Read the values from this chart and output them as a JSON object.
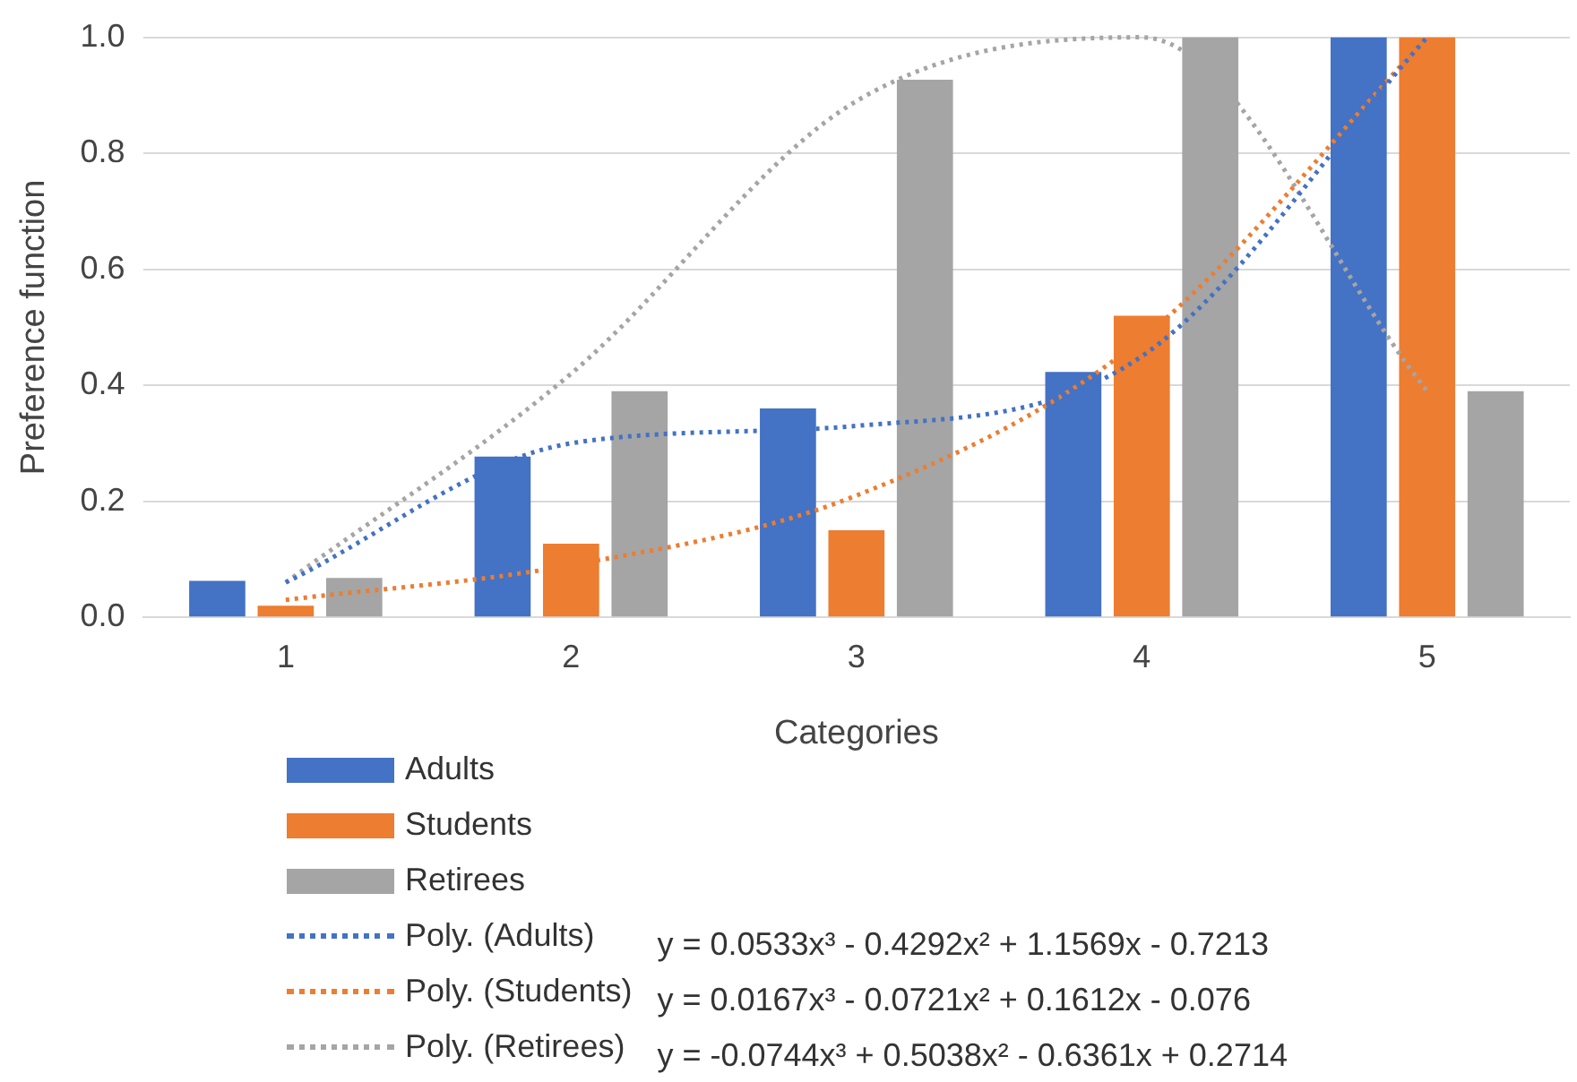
{
  "chart_data": {
    "type": "bar",
    "xlabel": "Categories",
    "ylabel": "Preference function",
    "categories": [
      "1",
      "2",
      "3",
      "4",
      "5"
    ],
    "series": [
      {
        "name": "Adults",
        "color": "#4472c4",
        "values": [
          0.063,
          0.277,
          0.36,
          0.423,
          1.0
        ]
      },
      {
        "name": "Students",
        "color": "#ed7d31",
        "values": [
          0.02,
          0.127,
          0.15,
          0.52,
          1.0
        ]
      },
      {
        "name": "Retirees",
        "color": "#a5a5a5",
        "values": [
          0.068,
          0.39,
          0.927,
          1.0,
          0.39
        ]
      },
      {
        "name": "Poly. (Adults)",
        "type": "line",
        "color": "#4472c4",
        "marker": "none",
        "line_style": "dotted",
        "values": [
          0.06,
          0.3,
          0.33,
          0.45,
          1.0
        ]
      },
      {
        "name": "Poly. (Students)",
        "type": "line",
        "color": "#ed7d31",
        "marker": "none",
        "line_style": "dotted",
        "values": [
          0.03,
          0.09,
          0.21,
          0.48,
          1.0
        ]
      },
      {
        "name": "Poly. (Retirees)",
        "type": "line",
        "color": "#a5a5a5",
        "marker": "none",
        "line_style": "dotted",
        "values": [
          0.06,
          0.42,
          0.89,
          1.0,
          0.39
        ]
      }
    ],
    "ylim": [
      0,
      1
    ],
    "yticks": [
      {
        "value": 0,
        "label": "0.0"
      },
      {
        "value": 0.2,
        "label": "0.2"
      },
      {
        "value": 0.4,
        "label": "0.4"
      },
      {
        "value": 0.6,
        "label": "0.6"
      },
      {
        "value": 0.8,
        "label": "0.8"
      },
      {
        "value": 1,
        "label": "1.0"
      }
    ],
    "grid": "y",
    "legend": "bottom",
    "annotations": [
      "y = 0.0533x³ - 0.4292x² + 1.1569x - 0.7213",
      "y = 0.0167x³ - 0.0721x² + 0.1612x - 0.076",
      "y = -0.0744x³ + 0.5038x² - 0.6361x + 0.2714"
    ]
  }
}
